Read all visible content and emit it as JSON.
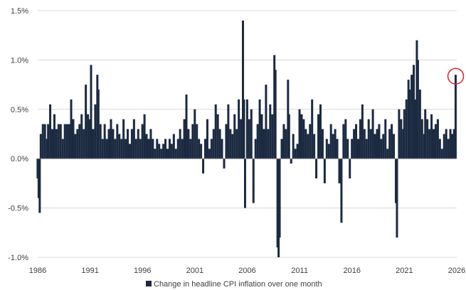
{
  "chart_data": {
    "type": "bar",
    "legend": {
      "label": "Change in headline CPI inflation over one month",
      "position": "bottom"
    },
    "colors": {
      "bar": "#1b2a41",
      "grid": "#d9d9d9",
      "highlight": "#d62728"
    },
    "x_range": [
      1986,
      2026
    ],
    "x_ticks": [
      "1986",
      "1991",
      "1996",
      "2001",
      "2006",
      "2011",
      "2016",
      "2021",
      "2026"
    ],
    "y_ticks": [
      "1.5%",
      "1.0%",
      "0.5%",
      "0.0%",
      "-0.5%",
      "-1.0%"
    ],
    "y_tick_values": [
      1.5,
      1.0,
      0.5,
      0.0,
      -0.5,
      -1.0
    ],
    "ylim": [
      -1.0,
      1.5
    ],
    "grid": true,
    "annotation": {
      "type": "circle",
      "target": "latest bar",
      "x": 2025.9,
      "y": 0.85
    },
    "points": [
      [
        1986.0,
        -0.2
      ],
      [
        1986.1,
        -0.4
      ],
      [
        1986.2,
        -0.55
      ],
      [
        1986.3,
        0.25
      ],
      [
        1986.5,
        0.35
      ],
      [
        1986.7,
        0.35
      ],
      [
        1986.9,
        0.2
      ],
      [
        1987.0,
        0.35
      ],
      [
        1987.2,
        0.55
      ],
      [
        1987.4,
        0.3
      ],
      [
        1987.6,
        0.45
      ],
      [
        1987.8,
        0.3
      ],
      [
        1988.0,
        0.35
      ],
      [
        1988.2,
        0.35
      ],
      [
        1988.4,
        0.2
      ],
      [
        1988.6,
        0.35
      ],
      [
        1988.8,
        0.35
      ],
      [
        1989.0,
        0.35
      ],
      [
        1989.2,
        0.6
      ],
      [
        1989.4,
        0.4
      ],
      [
        1989.6,
        0.25
      ],
      [
        1989.8,
        0.3
      ],
      [
        1990.0,
        0.35
      ],
      [
        1990.2,
        0.45
      ],
      [
        1990.4,
        0.3
      ],
      [
        1990.6,
        0.75
      ],
      [
        1990.8,
        0.45
      ],
      [
        1991.0,
        0.4
      ],
      [
        1991.1,
        0.95
      ],
      [
        1991.3,
        0.3
      ],
      [
        1991.5,
        0.55
      ],
      [
        1991.7,
        0.85
      ],
      [
        1991.8,
        0.7
      ],
      [
        1992.0,
        0.35
      ],
      [
        1992.2,
        0.2
      ],
      [
        1992.4,
        0.35
      ],
      [
        1992.6,
        0.2
      ],
      [
        1992.8,
        0.3
      ],
      [
        1993.0,
        0.4
      ],
      [
        1993.2,
        0.3
      ],
      [
        1993.4,
        0.2
      ],
      [
        1993.6,
        0.35
      ],
      [
        1993.8,
        0.25
      ],
      [
        1994.0,
        0.2
      ],
      [
        1994.2,
        0.4
      ],
      [
        1994.4,
        0.2
      ],
      [
        1994.6,
        0.3
      ],
      [
        1994.8,
        0.15
      ],
      [
        1995.0,
        0.3
      ],
      [
        1995.2,
        0.4
      ],
      [
        1995.4,
        0.2
      ],
      [
        1995.6,
        0.3
      ],
      [
        1995.8,
        0.2
      ],
      [
        1996.0,
        0.35
      ],
      [
        1996.2,
        0.45
      ],
      [
        1996.4,
        0.25
      ],
      [
        1996.6,
        0.2
      ],
      [
        1996.8,
        0.3
      ],
      [
        1997.0,
        0.2
      ],
      [
        1997.2,
        0.1
      ],
      [
        1997.4,
        0.2
      ],
      [
        1997.6,
        0.15
      ],
      [
        1997.8,
        0.1
      ],
      [
        1998.0,
        0.15
      ],
      [
        1998.2,
        0.2
      ],
      [
        1998.4,
        0.1
      ],
      [
        1998.6,
        0.2
      ],
      [
        1998.8,
        0.15
      ],
      [
        1999.0,
        0.25
      ],
      [
        1999.2,
        0.1
      ],
      [
        1999.4,
        0.2
      ],
      [
        1999.6,
        0.3
      ],
      [
        1999.8,
        0.2
      ],
      [
        2000.0,
        0.4
      ],
      [
        2000.2,
        0.65
      ],
      [
        2000.4,
        0.3
      ],
      [
        2000.6,
        0.2
      ],
      [
        2000.8,
        0.35
      ],
      [
        2001.0,
        0.5
      ],
      [
        2001.2,
        0.35
      ],
      [
        2001.4,
        0.2
      ],
      [
        2001.6,
        0.15
      ],
      [
        2001.8,
        -0.15
      ],
      [
        2002.0,
        0.2
      ],
      [
        2002.2,
        0.4
      ],
      [
        2002.4,
        0.1
      ],
      [
        2002.6,
        0.2
      ],
      [
        2002.8,
        0.3
      ],
      [
        2003.0,
        0.55
      ],
      [
        2003.2,
        0.45
      ],
      [
        2003.4,
        0.3
      ],
      [
        2003.6,
        0.2
      ],
      [
        2003.8,
        -0.1
      ],
      [
        2004.0,
        0.35
      ],
      [
        2004.2,
        0.55
      ],
      [
        2004.4,
        0.3
      ],
      [
        2004.6,
        0.25
      ],
      [
        2004.8,
        0.45
      ],
      [
        2005.0,
        0.3
      ],
      [
        2005.2,
        0.6
      ],
      [
        2005.4,
        0.4
      ],
      [
        2005.6,
        1.4
      ],
      [
        2005.7,
        0.6
      ],
      [
        2005.8,
        -0.5
      ],
      [
        2006.0,
        0.6
      ],
      [
        2006.2,
        0.4
      ],
      [
        2006.4,
        0.5
      ],
      [
        2006.6,
        -0.45
      ],
      [
        2006.8,
        0.2
      ],
      [
        2007.0,
        0.35
      ],
      [
        2007.2,
        0.6
      ],
      [
        2007.4,
        0.45
      ],
      [
        2007.6,
        0.3
      ],
      [
        2007.8,
        0.75
      ],
      [
        2008.0,
        0.3
      ],
      [
        2008.2,
        0.55
      ],
      [
        2008.4,
        0.45
      ],
      [
        2008.6,
        1.05
      ],
      [
        2008.7,
        0.9
      ],
      [
        2008.9,
        -0.9
      ],
      [
        2009.0,
        -1.0
      ],
      [
        2009.1,
        -0.8
      ],
      [
        2009.3,
        0.2
      ],
      [
        2009.5,
        0.35
      ],
      [
        2009.7,
        0.3
      ],
      [
        2009.9,
        0.8
      ],
      [
        2010.0,
        0.45
      ],
      [
        2010.2,
        -0.05
      ],
      [
        2010.4,
        0.25
      ],
      [
        2010.6,
        0.1
      ],
      [
        2010.8,
        0.15
      ],
      [
        2011.0,
        0.5
      ],
      [
        2011.2,
        0.45
      ],
      [
        2011.4,
        0.4
      ],
      [
        2011.6,
        0.3
      ],
      [
        2011.8,
        0.25
      ],
      [
        2012.0,
        0.35
      ],
      [
        2012.2,
        0.6
      ],
      [
        2012.4,
        0.25
      ],
      [
        2012.6,
        -0.2
      ],
      [
        2012.8,
        0.45
      ],
      [
        2013.0,
        0.55
      ],
      [
        2013.2,
        0.3
      ],
      [
        2013.4,
        -0.25
      ],
      [
        2013.6,
        0.2
      ],
      [
        2013.8,
        0.15
      ],
      [
        2014.0,
        0.35
      ],
      [
        2014.2,
        0.25
      ],
      [
        2014.4,
        0.3
      ],
      [
        2014.6,
        0.2
      ],
      [
        2014.8,
        -0.25
      ],
      [
        2015.0,
        -0.65
      ],
      [
        2015.2,
        0.35
      ],
      [
        2015.4,
        0.4
      ],
      [
        2015.6,
        0.2
      ],
      [
        2015.8,
        -0.2
      ],
      [
        2016.0,
        0.2
      ],
      [
        2016.2,
        0.3
      ],
      [
        2016.4,
        0.35
      ],
      [
        2016.6,
        0.2
      ],
      [
        2016.8,
        0.4
      ],
      [
        2017.0,
        0.55
      ],
      [
        2017.2,
        0.3
      ],
      [
        2017.4,
        0.2
      ],
      [
        2017.6,
        0.4
      ],
      [
        2017.8,
        0.3
      ],
      [
        2018.0,
        0.5
      ],
      [
        2018.2,
        0.25
      ],
      [
        2018.4,
        0.3
      ],
      [
        2018.6,
        0.35
      ],
      [
        2018.8,
        0.2
      ],
      [
        2019.0,
        0.25
      ],
      [
        2019.2,
        0.4
      ],
      [
        2019.4,
        0.1
      ],
      [
        2019.6,
        0.3
      ],
      [
        2019.8,
        0.35
      ],
      [
        2020.0,
        0.25
      ],
      [
        2020.2,
        -0.45
      ],
      [
        2020.3,
        -0.8
      ],
      [
        2020.5,
        0.5
      ],
      [
        2020.7,
        0.4
      ],
      [
        2020.9,
        0.3
      ],
      [
        2021.0,
        0.5
      ],
      [
        2021.2,
        0.6
      ],
      [
        2021.4,
        0.8
      ],
      [
        2021.5,
        0.7
      ],
      [
        2021.7,
        0.85
      ],
      [
        2021.9,
        0.95
      ],
      [
        2022.0,
        0.6
      ],
      [
        2022.2,
        1.2
      ],
      [
        2022.3,
        1.0
      ],
      [
        2022.5,
        0.7
      ],
      [
        2022.7,
        0.4
      ],
      [
        2022.9,
        0.25
      ],
      [
        2023.0,
        0.5
      ],
      [
        2023.2,
        0.4
      ],
      [
        2023.4,
        0.3
      ],
      [
        2023.6,
        0.45
      ],
      [
        2023.8,
        0.3
      ],
      [
        2024.0,
        0.35
      ],
      [
        2024.2,
        0.4
      ],
      [
        2024.4,
        0.2
      ],
      [
        2024.6,
        0.1
      ],
      [
        2024.8,
        0.25
      ],
      [
        2025.0,
        0.3
      ],
      [
        2025.2,
        0.2
      ],
      [
        2025.4,
        0.3
      ],
      [
        2025.6,
        0.25
      ],
      [
        2025.75,
        0.3
      ],
      [
        2025.9,
        0.85
      ]
    ]
  }
}
